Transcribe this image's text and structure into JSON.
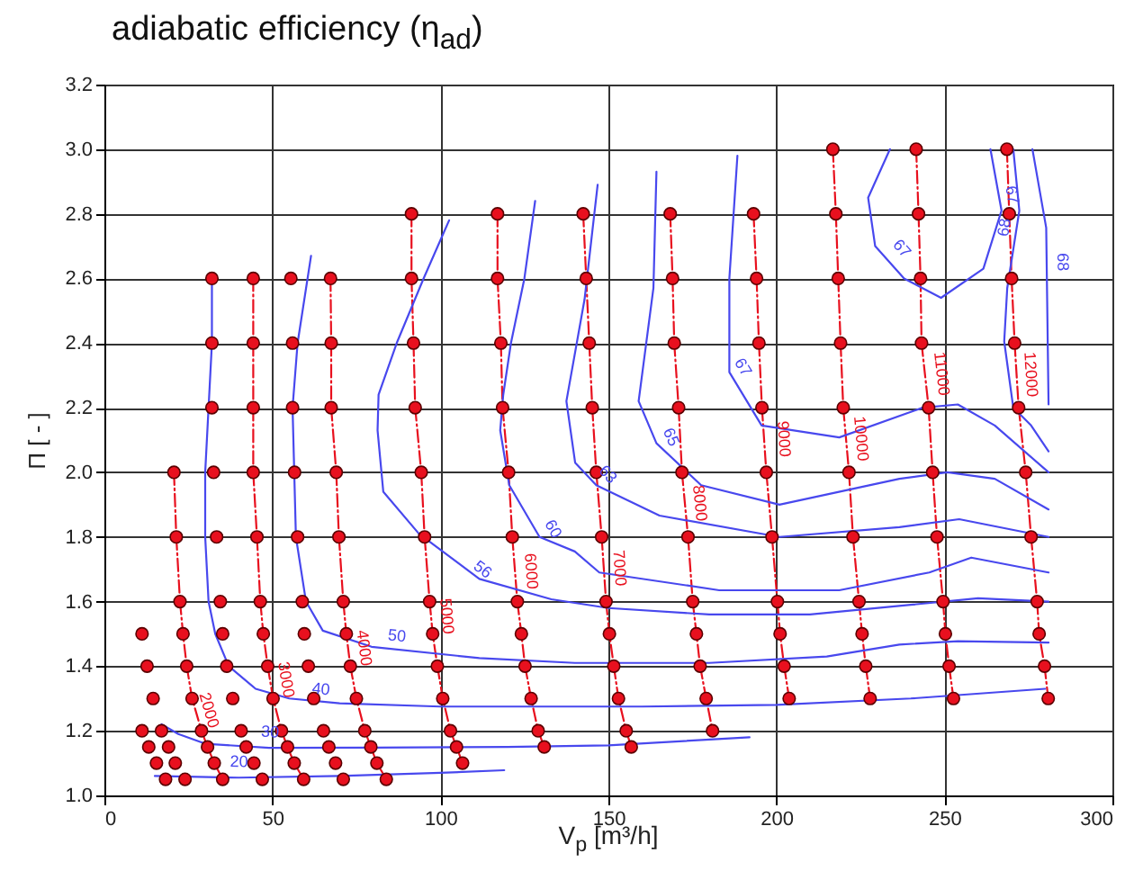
{
  "chart_data": {
    "type": "line",
    "title": "adiabatic efficiency (η$_{ad}$)",
    "xlabel": "V$_{p}$  [m³/h]",
    "ylabel": "Π  [ - ]",
    "xlim": [
      0,
      300
    ],
    "ylim": [
      1.0,
      3.2
    ],
    "xticks": [
      0,
      50,
      100,
      150,
      200,
      250,
      300
    ],
    "yticks": [
      {
        "value": 1.0,
        "label": "1.0"
      },
      {
        "value": 1.2,
        "label": "1.2"
      },
      {
        "value": 1.4,
        "label": "1.4"
      },
      {
        "value": 1.6,
        "label": "1.6"
      },
      {
        "value": 1.8,
        "label": "1.8"
      },
      {
        "value": 2.0,
        "label": "2.0"
      },
      {
        "value": 2.2,
        "label": "2.2"
      },
      {
        "value": 2.4,
        "label": "2.4"
      },
      {
        "value": 2.6,
        "label": "2.6"
      },
      {
        "value": 2.8,
        "label": "2.8"
      },
      {
        "value": 3.0,
        "label": "3.0"
      },
      {
        "value": 3.2,
        "label": "3.2"
      }
    ],
    "grid": true,
    "marker": "circle",
    "series": [
      {
        "type": "scatter",
        "color": "#e8101e",
        "x": [
          11.2,
          12.7,
          14.5,
          11.2,
          13.2,
          15.5,
          18.2,
          17,
          19.1,
          21.1,
          24
        ],
        "values": [
          1.5,
          1.4,
          1.3,
          1.2,
          1.15,
          1.1,
          1.05,
          1.2,
          1.15,
          1.1,
          1.05
        ]
      },
      {
        "color": "#e8101e",
        "line_style": "dashed",
        "x": [
          20.7,
          21.4,
          22.5,
          23.4,
          24.5,
          26.1,
          28.9,
          30.7,
          32.7,
          35.2
        ],
        "values": [
          2.0,
          1.8,
          1.6,
          1.5,
          1.4,
          1.3,
          1.2,
          1.15,
          1.1,
          1.05
        ]
      },
      {
        "type": "scatter",
        "color": "#e8101e",
        "x": [
          32,
          32,
          32,
          32.5,
          33.4,
          34.5,
          35.2,
          36.4,
          38.2,
          40.7,
          42.2,
          44.5,
          47
        ],
        "values": [
          2.6,
          2.4,
          2.2,
          2.0,
          1.8,
          1.6,
          1.5,
          1.4,
          1.3,
          1.2,
          1.15,
          1.1,
          1.05
        ]
      },
      {
        "color": "#e8101e",
        "line_style": "dashed",
        "x": [
          44.3,
          44.3,
          44.3,
          44.3,
          45.4,
          46.4,
          47.3,
          48.6,
          50.2,
          52.7,
          54.5,
          56.5,
          59.3
        ],
        "values": [
          2.6,
          2.4,
          2.2,
          2.0,
          1.8,
          1.6,
          1.5,
          1.4,
          1.3,
          1.2,
          1.15,
          1.1,
          1.05
        ]
      },
      {
        "type": "scatter",
        "color": "#e8101e",
        "x": [
          55.5,
          56,
          56,
          56.6,
          57.5,
          58.9,
          59.5,
          60.7,
          62.3,
          65.2,
          66.8,
          68.8,
          71.1
        ],
        "values": [
          2.6,
          2.4,
          2.2,
          2.0,
          1.8,
          1.6,
          1.5,
          1.4,
          1.3,
          1.2,
          1.15,
          1.1,
          1.05
        ]
      },
      {
        "color": "#e8101e",
        "line_style": "dashed",
        "x": [
          67.3,
          67.5,
          67.5,
          69,
          69.8,
          71.1,
          72,
          73.2,
          75,
          77.5,
          79.3,
          81.1,
          83.9
        ],
        "values": [
          2.6,
          2.4,
          2.2,
          2.0,
          1.8,
          1.6,
          1.5,
          1.4,
          1.3,
          1.2,
          1.15,
          1.1,
          1.05
        ]
      },
      {
        "color": "#e8101e",
        "line_style": "dashed",
        "x": [
          91.4,
          91.4,
          92,
          92.5,
          94.3,
          95.3,
          96.8,
          97.7,
          99.1,
          100.7,
          103,
          104.8,
          106.6
        ],
        "values": [
          2.8,
          2.6,
          2.4,
          2.2,
          2.0,
          1.8,
          1.6,
          1.5,
          1.4,
          1.3,
          1.2,
          1.15,
          1.1
        ]
      },
      {
        "color": "#e8101e",
        "line_style": "dashed",
        "x": [
          117,
          117,
          118,
          118.5,
          120.3,
          121.4,
          122.9,
          124.1,
          125.2,
          127,
          129.1,
          130.9
        ],
        "values": [
          2.8,
          2.6,
          2.4,
          2.2,
          2.0,
          1.8,
          1.6,
          1.5,
          1.4,
          1.3,
          1.2,
          1.15
        ]
      },
      {
        "color": "#e8101e",
        "line_style": "dashed",
        "x": [
          142.5,
          143.4,
          144.3,
          145.2,
          146.4,
          148,
          149.3,
          150.3,
          151.6,
          153,
          155.3,
          156.8
        ],
        "values": [
          2.8,
          2.6,
          2.4,
          2.2,
          2.0,
          1.8,
          1.6,
          1.5,
          1.4,
          1.3,
          1.2,
          1.15
        ]
      },
      {
        "color": "#e8101e",
        "line_style": "dashed",
        "x": [
          168.4,
          169.1,
          169.6,
          170.9,
          171.9,
          173.7,
          175.1,
          176.2,
          177.3,
          179.1,
          181
        ],
        "values": [
          2.8,
          2.6,
          2.4,
          2.2,
          2.0,
          1.8,
          1.6,
          1.5,
          1.4,
          1.3,
          1.2
        ]
      },
      {
        "color": "#e8101e",
        "line_style": "dashed",
        "x": [
          193.2,
          194.1,
          194.8,
          195.7,
          197,
          198.7,
          200.3,
          201.1,
          202.3,
          203.8
        ],
        "values": [
          2.8,
          2.6,
          2.4,
          2.2,
          2.0,
          1.8,
          1.6,
          1.5,
          1.4,
          1.3
        ]
      },
      {
        "color": "#e8101e",
        "line_style": "dashed",
        "x": [
          216.8,
          217.7,
          218.4,
          219.1,
          219.9,
          221.6,
          222.8,
          224.6,
          225.5,
          226.6,
          227.9
        ],
        "values": [
          3.0,
          2.8,
          2.6,
          2.4,
          2.2,
          2.0,
          1.8,
          1.6,
          1.5,
          1.4,
          1.3
        ]
      },
      {
        "color": "#e8101e",
        "line_style": "dashed",
        "x": [
          241.6,
          242.3,
          242.9,
          243.2,
          245.3,
          246.5,
          247.8,
          249.6,
          250.3,
          251.4,
          252.7
        ],
        "values": [
          3.0,
          2.8,
          2.6,
          2.4,
          2.2,
          2.0,
          1.8,
          1.6,
          1.5,
          1.4,
          1.3
        ]
      },
      {
        "color": "#e8101e",
        "line_style": "dashed",
        "x": [
          268.6,
          269.3,
          270,
          270.9,
          272.1,
          274.2,
          275.8,
          277.6,
          278.2,
          279.8,
          280.9
        ],
        "values": [
          3.0,
          2.8,
          2.6,
          2.4,
          2.2,
          2.0,
          1.8,
          1.6,
          1.5,
          1.4,
          1.3
        ]
      },
      {
        "color": "#4848ee",
        "marker": "none",
        "x": [
          15,
          40,
          70,
          100,
          119
        ],
        "values": [
          1.06,
          1.055,
          1.06,
          1.07,
          1.078
        ]
      },
      {
        "color": "#4848ee",
        "marker": "none",
        "x": [
          17,
          22,
          30,
          49,
          80,
          120,
          150,
          192
        ],
        "values": [
          1.22,
          1.19,
          1.16,
          1.147,
          1.148,
          1.15,
          1.155,
          1.18
        ]
      },
      {
        "color": "#4848ee",
        "marker": "none",
        "x": [
          32,
          32,
          31,
          30,
          30,
          31,
          33,
          37,
          45,
          55,
          70,
          100,
          140,
          160,
          200,
          240,
          280
        ],
        "values": [
          2.6,
          2.4,
          2.2,
          2.0,
          1.8,
          1.6,
          1.5,
          1.4,
          1.33,
          1.3,
          1.285,
          1.275,
          1.275,
          1.275,
          1.28,
          1.3,
          1.33
        ]
      },
      {
        "color": "#4848ee",
        "marker": "none",
        "x": [
          61.5,
          57.5,
          56,
          56.5,
          57,
          60,
          65,
          79.5,
          111.6,
          140,
          180,
          215,
          236.6,
          254,
          281
        ],
        "values": [
          2.67,
          2.4,
          2.2,
          2.0,
          1.8,
          1.6,
          1.51,
          1.46,
          1.425,
          1.41,
          1.41,
          1.43,
          1.467,
          1.477,
          1.473
        ]
      },
      {
        "color": "#4848ee",
        "marker": "none",
        "x": [
          102.6,
          95,
          87,
          81.6,
          81.3,
          83,
          93.6,
          111.6,
          133,
          150,
          180,
          210,
          240,
          260,
          281
        ],
        "values": [
          2.78,
          2.6,
          2.4,
          2.24,
          2.13,
          1.94,
          1.81,
          1.67,
          1.607,
          1.58,
          1.56,
          1.56,
          1.59,
          1.61,
          1.6
        ]
      },
      {
        "color": "#4848ee",
        "marker": "none",
        "x": [
          128.2,
          125,
          121,
          118.7,
          117.8,
          120.5,
          129.5,
          140,
          147.3,
          183,
          218.7,
          245.5,
          258,
          281
        ],
        "values": [
          2.84,
          2.6,
          2.4,
          2.24,
          2.13,
          1.96,
          1.8,
          1.755,
          1.69,
          1.635,
          1.635,
          1.69,
          1.736,
          1.69
        ]
      },
      {
        "color": "#4848ee",
        "marker": "none",
        "x": [
          146.8,
          142.9,
          137.5,
          140.1,
          146.4,
          165.2,
          200.9,
          236.6,
          254.4,
          281
        ],
        "values": [
          2.89,
          2.535,
          2.22,
          2.03,
          1.96,
          1.866,
          1.8,
          1.83,
          1.855,
          1.8
        ]
      },
      {
        "color": "#4848ee",
        "marker": "none",
        "x": [
          164.3,
          163.4,
          159,
          164.3,
          177.6,
          200.9,
          236.6,
          250.9,
          265,
          281
        ],
        "values": [
          2.93,
          2.57,
          2.22,
          2.09,
          1.96,
          1.9,
          1.98,
          2.0,
          1.98,
          1.885
        ]
      },
      {
        "color": "#4848ee",
        "marker": "none",
        "x": [
          188.4,
          186,
          186,
          195.6,
          218.7,
          243.5,
          254,
          265,
          281
        ],
        "values": [
          2.98,
          2.6,
          2.31,
          2.145,
          2.108,
          2.2,
          2.21,
          2.145,
          2.0
        ]
      },
      {
        "color": "#4848ee",
        "marker": "none",
        "x": [
          233.8,
          227.3,
          229.4,
          238,
          249,
          261.6,
          267,
          263.7
        ],
        "values": [
          3.0,
          2.85,
          2.7,
          2.6,
          2.54,
          2.63,
          2.81,
          3.0
        ]
      },
      {
        "color": "#4848ee",
        "marker": "none",
        "x": [
          270.5,
          272.3,
          268.7,
          267.8,
          270.5,
          275.8,
          281
        ],
        "values": [
          3.0,
          2.81,
          2.57,
          2.405,
          2.2,
          2.145,
          2.065
        ]
      },
      {
        "color": "#4848ee",
        "marker": "none",
        "x": [
          276.2,
          280.3,
          281
        ],
        "values": [
          3.0,
          2.757,
          2.21
        ]
      }
    ],
    "annotations": [
      {
        "text": "20",
        "x": 40,
        "y": 1.055
      },
      {
        "text": "30",
        "x": 49,
        "y": 1.147
      },
      {
        "text": "40",
        "x": 64,
        "y": 1.28
      },
      {
        "text": "50",
        "x": 86.6,
        "y": 1.445
      },
      {
        "text": "56",
        "x": 109.8,
        "y": 1.66
      },
      {
        "text": "60",
        "x": 129.5,
        "y": 1.8
      },
      {
        "text": "63",
        "x": 146.4,
        "y": 1.96
      },
      {
        "text": "65",
        "x": 164.3,
        "y": 2.09
      },
      {
        "text": "67",
        "x": 186,
        "y": 2.3
      },
      {
        "text": "67",
        "x": 233.8,
        "y": 2.66
      },
      {
        "text": "67",
        "x": 265.5,
        "y": 2.85
      },
      {
        "text": "68",
        "x": 272.5,
        "y": 2.75
      },
      {
        "text": "68",
        "x": 280.5,
        "y": 2.65
      },
      {
        "text": "2000",
        "x": 26.6,
        "y": 1.25
      },
      {
        "text": "3000",
        "x": 49.4,
        "y": 1.35
      },
      {
        "text": "4000",
        "x": 72.6,
        "y": 1.45
      },
      {
        "text": "5000",
        "x": 97.2,
        "y": 1.55
      },
      {
        "text": "6000",
        "x": 122.3,
        "y": 1.69
      },
      {
        "text": "7000",
        "x": 148.6,
        "y": 1.7
      },
      {
        "text": "8000",
        "x": 172.5,
        "y": 1.9
      },
      {
        "text": "9000",
        "x": 197.5,
        "y": 2.1
      },
      {
        "text": "10000",
        "x": 220.5,
        "y": 2.1
      },
      {
        "text": "11000",
        "x": 244.5,
        "y": 2.3
      },
      {
        "text": "12000",
        "x": 271,
        "y": 2.3
      }
    ]
  }
}
